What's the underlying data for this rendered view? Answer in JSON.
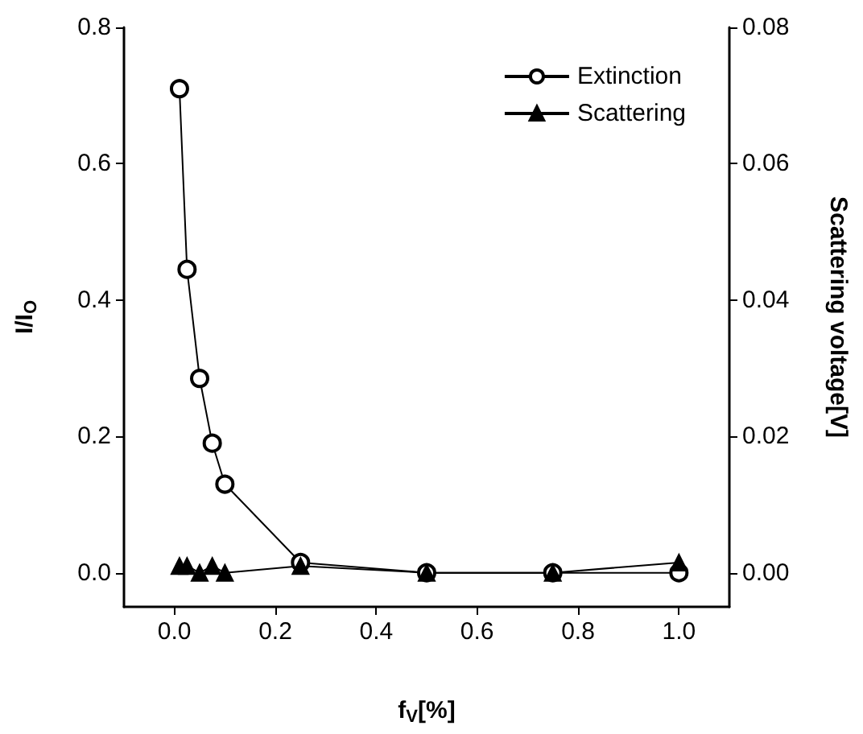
{
  "chart_data": {
    "type": "line",
    "xlabel": "f$_{V}$[%]",
    "ylabel": "I/I$_{O}$",
    "y2label": "Scattering voltage[V]",
    "x": [
      0.01,
      0.025,
      0.05,
      0.075,
      0.1,
      0.25,
      0.5,
      0.75,
      1.0
    ],
    "series": [
      {
        "name": "Extinction",
        "color": "#000000",
        "marker": "circle",
        "values": [
          0.71,
          0.445,
          0.285,
          0.19,
          0.13,
          0.015,
          0,
          0,
          0
        ]
      },
      {
        "name": "Scattering",
        "color": "#000000",
        "marker": "triangle",
        "axis": "y2",
        "values": [
          0.001,
          0.001,
          0,
          0.001,
          0,
          0.001,
          0,
          0,
          0.0015
        ]
      }
    ],
    "xlim": [
      -0.1,
      1.1
    ],
    "xticks": [
      {
        "value": 0,
        "label": "0.0"
      },
      0.2,
      0.4,
      0.6,
      0.8,
      {
        "value": 1,
        "label": "1.0"
      }
    ],
    "ylim": [
      -0.05,
      0.8
    ],
    "yticks": [
      {
        "value": 0,
        "label": "0.0"
      },
      0.2,
      0.4,
      0.6,
      0.8
    ],
    "y2lim": [
      -0.005,
      0.08
    ],
    "y2ticks": [
      {
        "value": 0,
        "label": "0.00"
      },
      0.02,
      0.04,
      0.06,
      0.08
    ],
    "grid": false,
    "legend": "top right",
    "line_style": "solid"
  }
}
